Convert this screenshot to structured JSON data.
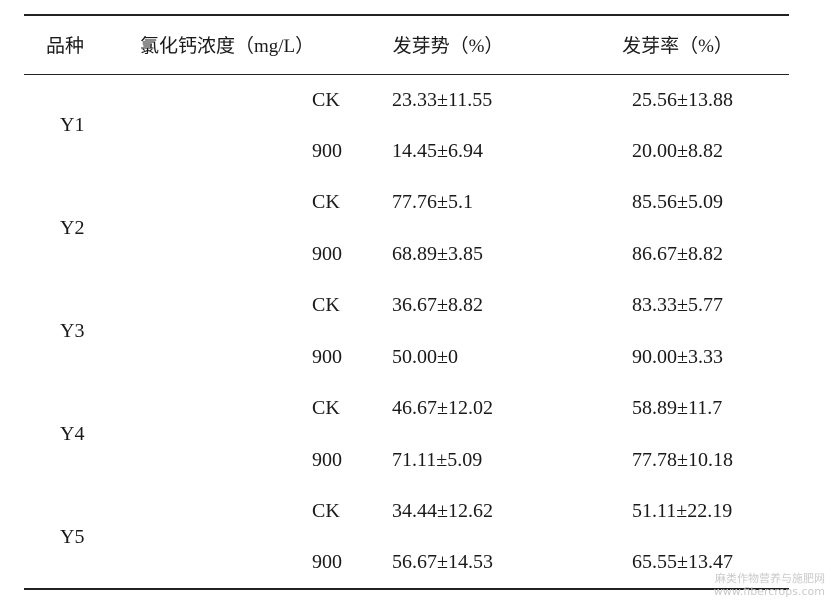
{
  "table": {
    "headers": {
      "variety": "品种",
      "concentration": "氯化钙浓度（mg/L）",
      "vigor": "发芽势（%）",
      "rate": "发芽率（%）"
    },
    "groups": [
      {
        "variety": "Y1",
        "rows": [
          {
            "treatment": "CK",
            "vigor": "23.33±11.55",
            "rate": "25.56±13.88"
          },
          {
            "treatment": "900",
            "vigor": "14.45±6.94",
            "rate": "20.00±8.82"
          }
        ]
      },
      {
        "variety": "Y2",
        "rows": [
          {
            "treatment": "CK",
            "vigor": "77.76±5.1",
            "rate": "85.56±5.09"
          },
          {
            "treatment": "900",
            "vigor": "68.89±3.85",
            "rate": "86.67±8.82"
          }
        ]
      },
      {
        "variety": "Y3",
        "rows": [
          {
            "treatment": "CK",
            "vigor": "36.67±8.82",
            "rate": "83.33±5.77"
          },
          {
            "treatment": "900",
            "vigor": "50.00±0",
            "rate": "90.00±3.33"
          }
        ]
      },
      {
        "variety": "Y4",
        "rows": [
          {
            "treatment": "CK",
            "vigor": "46.67±12.02",
            "rate": "58.89±11.7"
          },
          {
            "treatment": "900",
            "vigor": "71.11±5.09",
            "rate": "77.78±10.18"
          }
        ]
      },
      {
        "variety": "Y5",
        "rows": [
          {
            "treatment": "CK",
            "vigor": "34.44±12.62",
            "rate": "51.11±22.19"
          },
          {
            "treatment": "900",
            "vigor": "56.67±14.53",
            "rate": "65.55±13.47"
          }
        ]
      }
    ]
  },
  "watermark": {
    "line1": "麻类作物营养与施肥网",
    "line2": "www.fibercrops.com"
  }
}
